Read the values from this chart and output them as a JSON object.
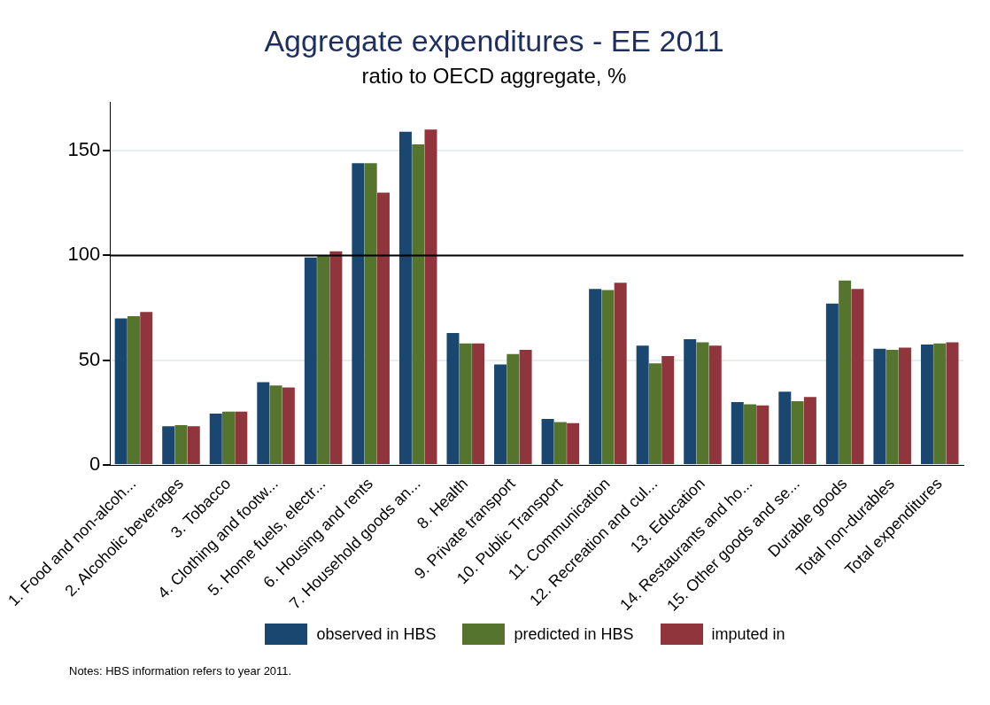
{
  "chart_data": {
    "type": "bar",
    "title": "Aggregate expenditures - EE 2011",
    "subtitle": "ratio to OECD aggregate, %",
    "categories": [
      "1. Food and non-alcoh...",
      "2. Alcoholic beverages",
      "3. Tobacco",
      "4. Clothing and footw...",
      "5. Home fuels, electr...",
      "6. Housing and rents",
      "7. Household goods an...",
      "8. Health",
      "9. Private transport",
      "10. Public Transport",
      "11. Communication",
      "12. Recreation and cul...",
      "13. Education",
      "14. Restaurants and ho...",
      "15. Other goods and se...",
      "Durable goods",
      "Total non-durables",
      "Total expenditures"
    ],
    "series": [
      {
        "name": "observed in HBS",
        "color": "#1a476f",
        "values": [
          70,
          18.5,
          24.5,
          39.5,
          99,
          144,
          159,
          63,
          48,
          22,
          84,
          57,
          60,
          30,
          35,
          77,
          55.5,
          57.5
        ]
      },
      {
        "name": "predicted in HBS",
        "color": "#55752f",
        "values": [
          71,
          19,
          25.5,
          38,
          100,
          144,
          153,
          58,
          53,
          20.5,
          83.5,
          48.5,
          58.5,
          29,
          30.5,
          88,
          55,
          58
        ]
      },
      {
        "name": "imputed in",
        "color": "#90353b",
        "values": [
          73,
          18.5,
          25.5,
          37,
          102,
          130,
          160,
          58,
          55,
          20,
          87,
          52,
          57,
          28.5,
          32.5,
          84,
          56,
          58.5
        ]
      }
    ],
    "ylim": [
      0,
      173
    ],
    "yticks": [
      0,
      50,
      100,
      150
    ],
    "grid": "y",
    "legend": "bottom",
    "ref_lines": [
      {
        "axis": "y",
        "value": 100,
        "color": "#000000"
      }
    ],
    "annotations": [
      "Notes: HBS information refers to year 2011."
    ]
  }
}
